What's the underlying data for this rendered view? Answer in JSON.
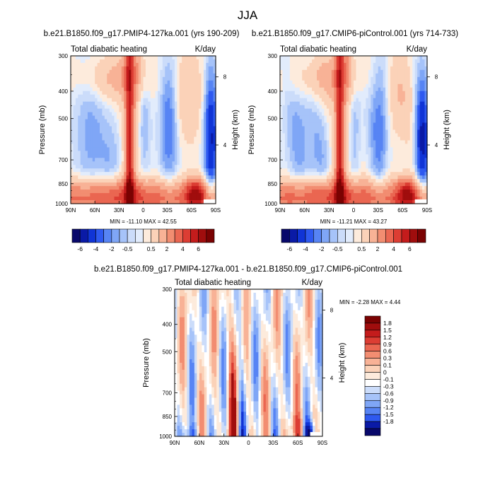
{
  "figure": {
    "title": "JJA",
    "colors": {
      "neg": [
        "#08086b",
        "#0a1aa6",
        "#1034d6",
        "#2e59f0",
        "#5784f4",
        "#7fa6f6",
        "#a6c3f9",
        "#cbdcfa",
        "#e2ecfc"
      ],
      "pos": [
        "#fdebdc",
        "#fbd2b8",
        "#f8b296",
        "#f28d71",
        "#ea6651",
        "#dc3d33",
        "#c41c1c",
        "#a00d0d",
        "#7a0202"
      ]
    }
  },
  "chart_data": [
    {
      "type": "heatmap",
      "subtitle": "b.e21.B1850.f09_g17.PMIP4-127ka.001 (yrs 190-209)",
      "left_label": "Total diabatic heating",
      "right_label": "K/day",
      "ylabel": "Pressure (mb)",
      "y2label": "Height (km)",
      "x_ticks": [
        "90N",
        "60N",
        "30N",
        "0",
        "30S",
        "60S",
        "90S"
      ],
      "x_range": [
        90,
        -90
      ],
      "y_ticks": [
        "300",
        "400",
        "500",
        "700",
        "850",
        "1000"
      ],
      "y_tick_values": [
        300,
        400,
        500,
        700,
        850,
        1000
      ],
      "y_range": [
        300,
        1000
      ],
      "y_scale": "log",
      "y2_ticks": [
        "8",
        "4"
      ],
      "y2_tick_pressures": [
        356,
        620
      ],
      "stats": "MIN = -11.10   MAX =  42.55",
      "colorbar_labels": [
        "-6",
        "-4",
        "-2",
        "-0.5",
        "0.5",
        "2",
        "4",
        "6"
      ],
      "colorbar_orientation": "horizontal",
      "variant": 0
    },
    {
      "type": "heatmap",
      "subtitle": "b.e21.B1850.f09_g17.CMIP6-piControl.001 (yrs 714-733)",
      "left_label": "Total diabatic heating",
      "right_label": "K/day",
      "ylabel": "Pressure (mb)",
      "y2label": "Height (km)",
      "x_ticks": [
        "90N",
        "60N",
        "30N",
        "0",
        "30S",
        "60S",
        "90S"
      ],
      "x_range": [
        90,
        -90
      ],
      "y_ticks": [
        "300",
        "400",
        "500",
        "700",
        "850",
        "1000"
      ],
      "y_tick_values": [
        300,
        400,
        500,
        700,
        850,
        1000
      ],
      "y_range": [
        300,
        1000
      ],
      "y_scale": "log",
      "y2_ticks": [
        "8",
        "4"
      ],
      "y2_tick_pressures": [
        356,
        620
      ],
      "stats": "MIN = -11.21   MAX =  43.27",
      "colorbar_labels": [
        "-6",
        "-4",
        "-2",
        "-0.5",
        "0.5",
        "2",
        "4",
        "6"
      ],
      "colorbar_orientation": "horizontal",
      "variant": 1
    },
    {
      "type": "heatmap",
      "subtitle": "b.e21.B1850.f09_g17.PMIP4-127ka.001 - b.e21.B1850.f09_g17.CMIP6-piControl.001",
      "left_label": "Total diabatic heating",
      "right_label": "K/day",
      "ylabel": "Pressure (mb)",
      "y2label": "Height (km)",
      "x_ticks": [
        "90N",
        "60N",
        "30N",
        "0",
        "30S",
        "60S",
        "90S"
      ],
      "x_range": [
        90,
        -90
      ],
      "y_ticks": [
        "300",
        "400",
        "500",
        "700",
        "850",
        "1000"
      ],
      "y_tick_values": [
        300,
        400,
        500,
        700,
        850,
        1000
      ],
      "y_range": [
        300,
        1000
      ],
      "y_scale": "log",
      "y2_ticks": [
        "8",
        "4"
      ],
      "y2_tick_pressures": [
        356,
        620
      ],
      "stats": "MIN =  -2.28   MAX =   4.44",
      "colorbar_labels": [
        "1.8",
        "1.5",
        "1.2",
        "0.9",
        "0.6",
        "0.3",
        "0.1",
        "0",
        "-0.1",
        "-0.3",
        "-0.6",
        "-0.9",
        "-1.2",
        "-1.5",
        "-1.8"
      ],
      "colorbar_orientation": "vertical",
      "variant": 2
    }
  ]
}
